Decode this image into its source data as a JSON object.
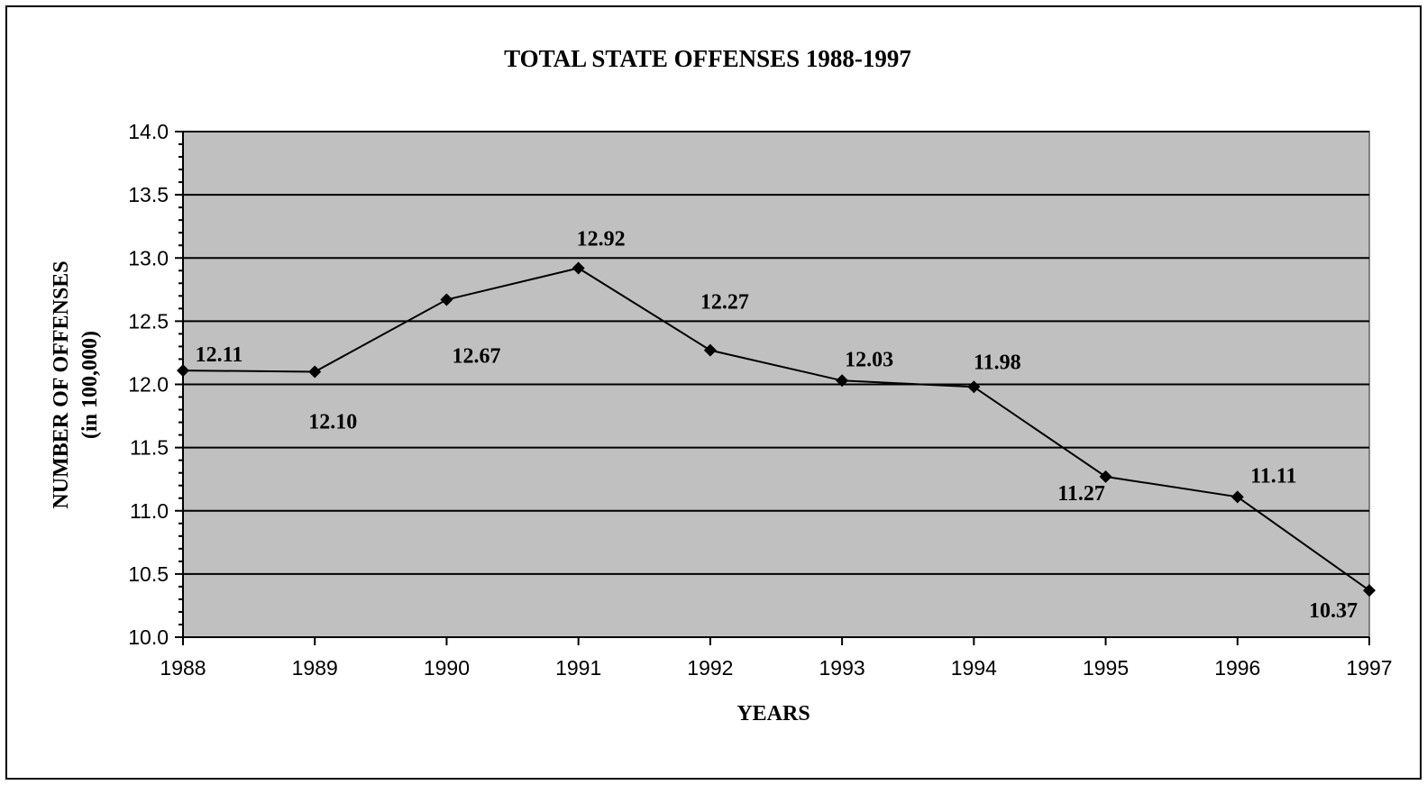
{
  "chart_data": {
    "type": "line",
    "title": "TOTAL STATE OFFENSES 1988-1997",
    "xlabel": "YEARS",
    "ylabel": "NUMBER OF OFFENSES",
    "ylabel_sub": "(in 100,000)",
    "x": [
      "1988",
      "1989",
      "1990",
      "1991",
      "1992",
      "1993",
      "1994",
      "1995",
      "1996",
      "1997"
    ],
    "series": [
      {
        "values": [
          12.11,
          12.1,
          12.67,
          12.92,
          12.27,
          12.03,
          11.98,
          11.27,
          11.11,
          10.37
        ],
        "labels": [
          "12.11",
          "12.10",
          "12.67",
          "12.92",
          "12.27",
          "12.03",
          "11.98",
          "11.27",
          "11.11",
          "10.37"
        ],
        "marker": "diamond",
        "color": "#000000"
      }
    ],
    "ylim": [
      10.0,
      14.0
    ],
    "yticks": [
      "10.0",
      "10.5",
      "11.0",
      "11.5",
      "12.0",
      "12.5",
      "13.0",
      "13.5",
      "14.0"
    ],
    "grid": true,
    "legend": "none",
    "plot_background": "#c0c0c0"
  }
}
